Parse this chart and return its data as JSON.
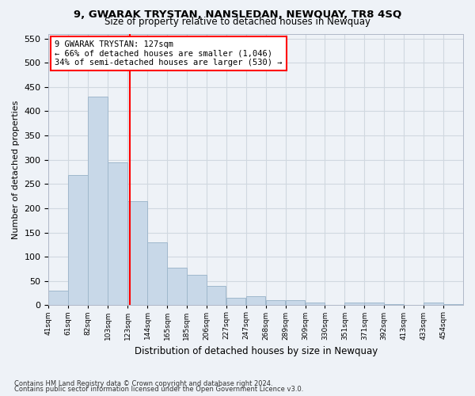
{
  "title": "9, GWARAK TRYSTAN, NANSLEDAN, NEWQUAY, TR8 4SQ",
  "subtitle": "Size of property relative to detached houses in Newquay",
  "xlabel": "Distribution of detached houses by size in Newquay",
  "ylabel": "Number of detached properties",
  "bin_labels": [
    "41sqm",
    "61sqm",
    "82sqm",
    "103sqm",
    "123sqm",
    "144sqm",
    "165sqm",
    "185sqm",
    "206sqm",
    "227sqm",
    "247sqm",
    "268sqm",
    "289sqm",
    "309sqm",
    "330sqm",
    "351sqm",
    "371sqm",
    "392sqm",
    "413sqm",
    "433sqm",
    "454sqm"
  ],
  "bar_heights": [
    30,
    268,
    430,
    295,
    215,
    130,
    78,
    62,
    40,
    15,
    18,
    10,
    10,
    5,
    0,
    5,
    6,
    2,
    0,
    5,
    3
  ],
  "bar_color": "#c8d8e8",
  "bar_edgecolor": "#a0b8cc",
  "grid_color": "#d0d8e0",
  "vline_x": 127,
  "annotation_box_text": "9 GWARAK TRYSTAN: 127sqm\n← 66% of detached houses are smaller (1,046)\n34% of semi-detached houses are larger (530) →",
  "ylim": [
    0,
    560
  ],
  "yticks": [
    0,
    50,
    100,
    150,
    200,
    250,
    300,
    350,
    400,
    450,
    500,
    550
  ],
  "footnote1": "Contains HM Land Registry data © Crown copyright and database right 2024.",
  "footnote2": "Contains public sector information licensed under the Open Government Licence v3.0.",
  "background_color": "#eef2f7",
  "plot_bg_color": "#eef2f7",
  "bin_width": 21
}
